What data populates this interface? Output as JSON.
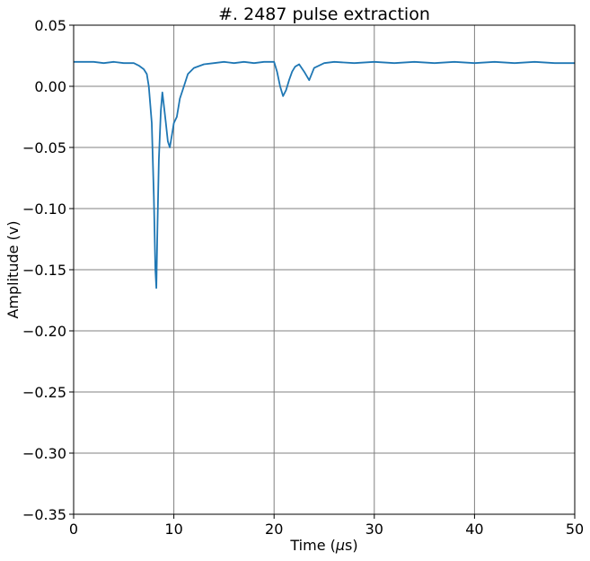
{
  "chart_data": {
    "type": "line",
    "title": "#. 2487 pulse extraction",
    "xlabel": "Time (",
    "xlabel_symbol": "μ",
    "xlabel_suffix": "s)",
    "ylabel": "Amplitude (v)",
    "xlim": [
      0,
      50
    ],
    "ylim": [
      -0.35,
      0.05
    ],
    "x_ticks": [
      0,
      10,
      20,
      30,
      40,
      50
    ],
    "y_ticks": [
      0.05,
      0.0,
      -0.05,
      -0.1,
      -0.15,
      -0.2,
      -0.25,
      -0.3,
      -0.35
    ],
    "x_tick_labels": [
      "0",
      "10",
      "20",
      "30",
      "40",
      "50"
    ],
    "y_tick_labels": [
      "0.05",
      "0.00",
      "−0.05",
      "−0.10",
      "−0.15",
      "−0.20",
      "−0.25",
      "−0.30",
      "−0.35"
    ],
    "grid": true,
    "series": [
      {
        "color": "#1f77b4",
        "x": [
          0,
          1,
          2,
          3,
          4,
          5,
          6,
          6.5,
          7,
          7.3,
          7.5,
          7.8,
          8.0,
          8.15,
          8.25,
          8.35,
          8.5,
          8.7,
          8.85,
          9.0,
          9.2,
          9.4,
          9.6,
          9.8,
          10.0,
          10.3,
          10.6,
          11.0,
          11.4,
          12.0,
          13,
          14,
          15,
          16,
          17,
          18,
          19,
          20,
          20.3,
          20.6,
          20.9,
          21.2,
          21.5,
          21.8,
          22.1,
          22.5,
          23,
          23.5,
          24,
          25,
          26,
          28,
          30,
          32,
          34,
          36,
          38,
          40,
          42,
          44,
          46,
          48,
          50
        ],
        "y": [
          0.02,
          0.02,
          0.02,
          0.019,
          0.02,
          0.019,
          0.019,
          0.017,
          0.014,
          0.01,
          0.0,
          -0.03,
          -0.09,
          -0.15,
          -0.165,
          -0.12,
          -0.06,
          -0.02,
          -0.005,
          -0.015,
          -0.03,
          -0.045,
          -0.05,
          -0.04,
          -0.03,
          -0.025,
          -0.01,
          0.0,
          0.01,
          0.015,
          0.018,
          0.019,
          0.02,
          0.019,
          0.02,
          0.019,
          0.02,
          0.02,
          0.012,
          0.0,
          -0.008,
          -0.003,
          0.005,
          0.012,
          0.016,
          0.018,
          0.012,
          0.005,
          0.015,
          0.019,
          0.02,
          0.019,
          0.02,
          0.019,
          0.02,
          0.019,
          0.02,
          0.019,
          0.02,
          0.019,
          0.02,
          0.019,
          0.019
        ]
      }
    ]
  }
}
